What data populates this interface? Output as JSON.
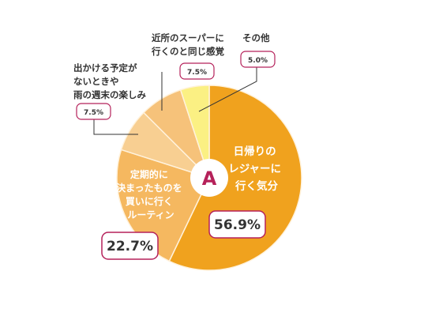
{
  "chart_data": {
    "type": "pie",
    "center_label": "A",
    "slices": [
      {
        "label": "日帰りのレジャーに行く気分",
        "label_lines": [
          "日帰りの",
          "レジャーに",
          "行く気分"
        ],
        "value": 56.9,
        "display": "56.9%",
        "color": "#F0A21E"
      },
      {
        "label": "定期的に決まったものを買いに行くルーティン",
        "label_lines": [
          "定期的に",
          "決まったものを",
          "買いに行く",
          "ルーティン"
        ],
        "value": 22.7,
        "display": "22.7%",
        "color": "#F5B860"
      },
      {
        "label": "出かける予定がないときや雨の週末の楽しみ",
        "label_lines": [
          "出かける予定が",
          "ないときや",
          "雨の週末の楽しみ"
        ],
        "value": 7.5,
        "display": "7.5%",
        "color": "#F8CF92"
      },
      {
        "label": "近所のスーパーに行くのと同じ感覚",
        "label_lines": [
          "近所のスーパーに",
          "行くのと同じ感覚"
        ],
        "value": 7.5,
        "display": "7.5%",
        "color": "#F6C27A"
      },
      {
        "label": "その他",
        "label_lines": [
          "その他"
        ],
        "value": 5.0,
        "display": "5.0%",
        "color": "#FBF083"
      }
    ],
    "colors": {
      "badge_border": "#B5215A",
      "center_text": "#B5215A",
      "divider": "#FFF2DC"
    }
  }
}
